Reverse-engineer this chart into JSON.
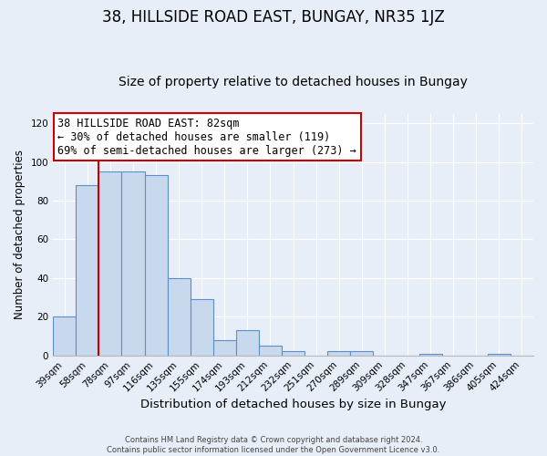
{
  "title": "38, HILLSIDE ROAD EAST, BUNGAY, NR35 1JZ",
  "subtitle": "Size of property relative to detached houses in Bungay",
  "xlabel": "Distribution of detached houses by size in Bungay",
  "ylabel": "Number of detached properties",
  "bar_labels": [
    "39sqm",
    "58sqm",
    "78sqm",
    "97sqm",
    "116sqm",
    "135sqm",
    "155sqm",
    "174sqm",
    "193sqm",
    "212sqm",
    "232sqm",
    "251sqm",
    "270sqm",
    "289sqm",
    "309sqm",
    "328sqm",
    "347sqm",
    "367sqm",
    "386sqm",
    "405sqm",
    "424sqm"
  ],
  "bar_values": [
    20,
    88,
    95,
    95,
    93,
    40,
    29,
    8,
    13,
    5,
    2,
    0,
    2,
    2,
    0,
    0,
    1,
    0,
    0,
    1,
    0
  ],
  "bar_color": "#c9d9ed",
  "bar_edge_color": "#5b8fc9",
  "highlight_bar_index": 2,
  "highlight_color": "#cc0000",
  "annotation_line1": "38 HILLSIDE ROAD EAST: 82sqm",
  "annotation_line2": "← 30% of detached houses are smaller (119)",
  "annotation_line3": "69% of semi-detached houses are larger (273) →",
  "annotation_box_color": "#ffffff",
  "annotation_box_edge": "#cc0000",
  "ylim": [
    0,
    125
  ],
  "yticks": [
    0,
    20,
    40,
    60,
    80,
    100,
    120
  ],
  "background_color": "#e8eef7",
  "grid_color": "#ffffff",
  "footer_text": "Contains HM Land Registry data © Crown copyright and database right 2024.\nContains public sector information licensed under the Open Government Licence v3.0.",
  "title_fontsize": 12,
  "subtitle_fontsize": 10,
  "xlabel_fontsize": 9.5,
  "ylabel_fontsize": 8.5,
  "tick_fontsize": 7.5,
  "annotation_fontsize": 8.5,
  "footer_fontsize": 6.0
}
